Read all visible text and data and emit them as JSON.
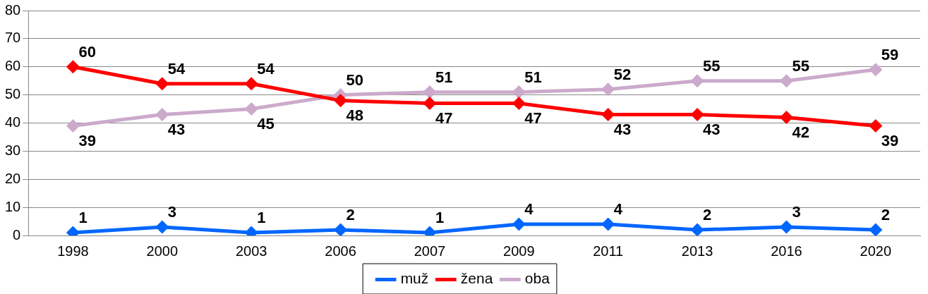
{
  "chart_data": {
    "type": "line",
    "categories": [
      "1998",
      "2000",
      "2003",
      "2006",
      "2007",
      "2009",
      "2011",
      "2013",
      "2016",
      "2020"
    ],
    "series": [
      {
        "name": "muž",
        "color": "#0066ff",
        "values": [
          1,
          3,
          1,
          2,
          1,
          4,
          4,
          2,
          3,
          2
        ]
      },
      {
        "name": "žena",
        "color": "#ff0000",
        "values": [
          60,
          54,
          54,
          48,
          47,
          47,
          43,
          43,
          42,
          39
        ]
      },
      {
        "name": "oba",
        "color": "#ccaacc",
        "values": [
          39,
          43,
          45,
          50,
          51,
          51,
          52,
          55,
          55,
          59
        ]
      }
    ],
    "ylim": [
      0,
      80
    ],
    "yticks": [
      0,
      10,
      20,
      30,
      40,
      50,
      60,
      70,
      80
    ],
    "grid": "y",
    "legend": "bottom",
    "marker": "diamond",
    "line_style": "solid",
    "data_labels": true
  }
}
